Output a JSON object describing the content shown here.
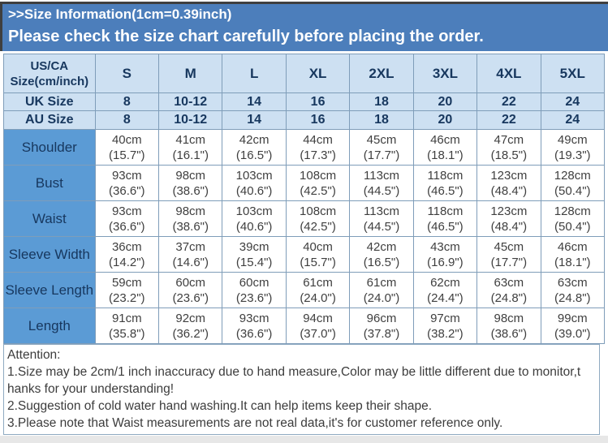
{
  "banner": {
    "line1": ">>Size Information(1cm=0.39inch)",
    "line2": "Please check the size chart carefully before placing the order."
  },
  "colors": {
    "banner_blue": "#4c7ebb",
    "header_light_blue": "#cde0f2",
    "label_blue": "#5b9bd5",
    "navy_text": "#17375e",
    "data_text": "#3f3f3f",
    "grid_border": "#7f9db9"
  },
  "table": {
    "header": {
      "label_line1": "US/CA",
      "label_line2": "Size(cm/inch)",
      "sizes": [
        "S",
        "M",
        "L",
        "XL",
        "2XL",
        "3XL",
        "4XL",
        "5XL"
      ]
    },
    "uk_row": {
      "label": "UK Size",
      "values": [
        "8",
        "10-12",
        "14",
        "16",
        "18",
        "20",
        "22",
        "24"
      ]
    },
    "au_row": {
      "label": "AU Size",
      "values": [
        "8",
        "10-12",
        "14",
        "16",
        "18",
        "20",
        "22",
        "24"
      ]
    },
    "rows": [
      {
        "label": "Shoulder",
        "cm": [
          "40cm",
          "41cm",
          "42cm",
          "44cm",
          "45cm",
          "46cm",
          "47cm",
          "49cm"
        ],
        "inch": [
          "(15.7\")",
          "(16.1\")",
          "(16.5\")",
          "(17.3\")",
          "(17.7\")",
          "(18.1\")",
          "(18.5\")",
          "(19.3\")"
        ]
      },
      {
        "label": "Bust",
        "cm": [
          "93cm",
          "98cm",
          "103cm",
          "108cm",
          "113cm",
          "118cm",
          "123cm",
          "128cm"
        ],
        "inch": [
          "(36.6\")",
          "(38.6\")",
          "(40.6\")",
          "(42.5\")",
          "(44.5\")",
          "(46.5\")",
          "(48.4\")",
          "(50.4\")"
        ]
      },
      {
        "label": "Waist",
        "cm": [
          "93cm",
          "98cm",
          "103cm",
          "108cm",
          "113cm",
          "118cm",
          "123cm",
          "128cm"
        ],
        "inch": [
          "(36.6\")",
          "(38.6\")",
          "(40.6\")",
          "(42.5\")",
          "(44.5\")",
          "(46.5\")",
          "(48.4\")",
          "(50.4\")"
        ]
      },
      {
        "label": "Sleeve Width",
        "cm": [
          "36cm",
          "37cm",
          "39cm",
          "40cm",
          "42cm",
          "43cm",
          "45cm",
          "46cm"
        ],
        "inch": [
          "(14.2\")",
          "(14.6\")",
          "(15.4\")",
          "(15.7\")",
          "(16.5\")",
          "(16.9\")",
          "(17.7\")",
          "(18.1\")"
        ]
      },
      {
        "label": "Sleeve Length",
        "cm": [
          "59cm",
          "60cm",
          "60cm",
          "61cm",
          "61cm",
          "62cm",
          "63cm",
          "63cm"
        ],
        "inch": [
          "(23.2\")",
          "(23.6\")",
          "(23.6\")",
          "(24.0\")",
          "(24.0\")",
          "(24.4\")",
          "(24.8\")",
          "(24.8\")"
        ]
      },
      {
        "label": "Length",
        "cm": [
          "91cm",
          "92cm",
          "93cm",
          "94cm",
          "96cm",
          "97cm",
          "98cm",
          "99cm"
        ],
        "inch": [
          "(35.8\")",
          "(36.2\")",
          "(36.6\")",
          "(37.0\")",
          "(37.8\")",
          "(38.2\")",
          "(38.6\")",
          "(39.0\")"
        ]
      }
    ]
  },
  "attention": {
    "title": "Attention:",
    "lines": [
      "1.Size may be 2cm/1 inch inaccuracy due to hand measure,Color may be little different due to monitor,t",
      "hanks for your understanding!",
      "2.Suggestion of cold water hand washing.It can help items keep their shape.",
      "3.Please note that Waist measurements are not real data,it's for customer reference only."
    ]
  }
}
